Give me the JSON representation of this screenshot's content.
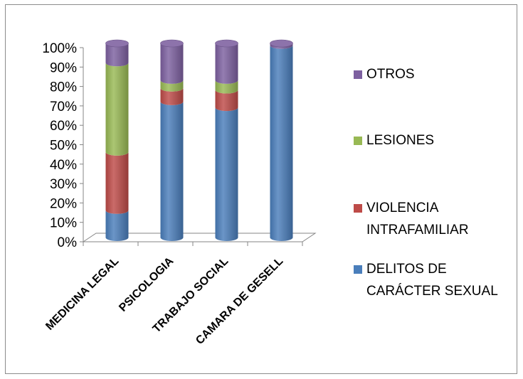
{
  "chart_data": {
    "type": "bar",
    "stacked": "percent",
    "categories": [
      "MEDICINA LEGAL",
      "PSICOLOGIA",
      "TRABAJO SOCIAL",
      "CAMARA DE GESELL"
    ],
    "series": [
      {
        "name": "DELITOS DE CARÁCTER SEXUAL",
        "color": "#4a7ebb",
        "values": [
          14,
          70,
          67,
          99
        ]
      },
      {
        "name": "VIOLENCIA INTRAFAMILIAR",
        "color": "#be4b48",
        "values": [
          30,
          7,
          9,
          0
        ]
      },
      {
        "name": "LESIONES",
        "color": "#98b954",
        "values": [
          46,
          4,
          5,
          0
        ]
      },
      {
        "name": "OTROS",
        "color": "#7d60a0",
        "values": [
          10,
          19,
          19,
          1
        ]
      }
    ],
    "y_ticks": [
      "0%",
      "10%",
      "20%",
      "30%",
      "40%",
      "50%",
      "60%",
      "70%",
      "80%",
      "90%",
      "100%"
    ],
    "ylim": [
      0,
      100
    ],
    "grid": false,
    "legend": {
      "position": "right",
      "order": [
        3,
        2,
        1,
        0
      ],
      "entries": [
        {
          "series": 3,
          "lines": [
            "OTROS"
          ]
        },
        {
          "series": 2,
          "lines": [
            "LESIONES"
          ]
        },
        {
          "series": 1,
          "lines": [
            "VIOLENCIA",
            "INTRAFAMILIAR"
          ]
        },
        {
          "series": 0,
          "lines": [
            "DELITOS DE",
            "CARÁCTER SEXUAL"
          ]
        }
      ]
    },
    "title": "",
    "xlabel": "",
    "ylabel": ""
  }
}
